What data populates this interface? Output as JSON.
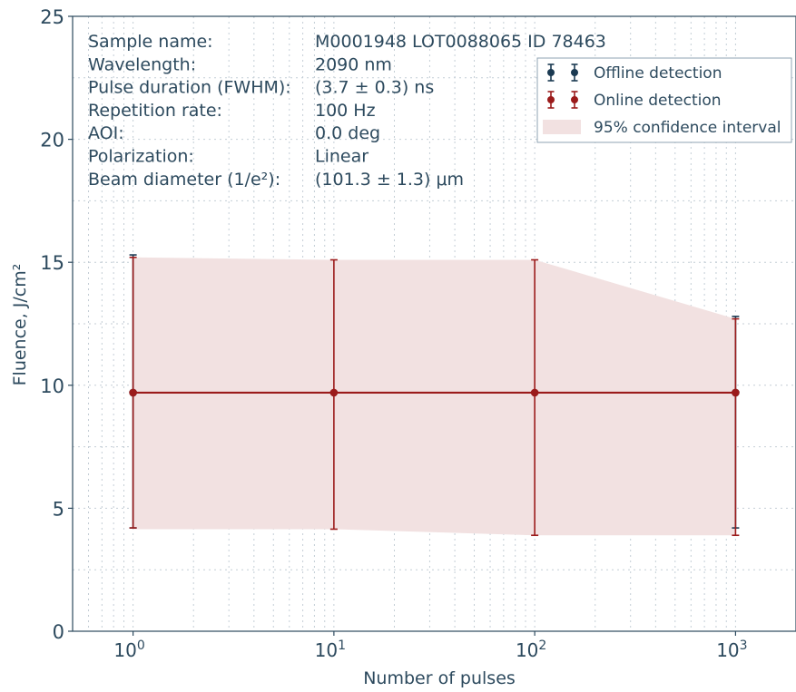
{
  "chart_data": {
    "type": "scatter",
    "x_scale": "log",
    "x_tick_values": [
      1,
      10,
      100,
      1000
    ],
    "x_tick_labels": [
      {
        "base": "10",
        "exp": "0"
      },
      {
        "base": "10",
        "exp": "1"
      },
      {
        "base": "10",
        "exp": "2"
      },
      {
        "base": "10",
        "exp": "3"
      }
    ],
    "xlim": [
      0.5,
      2000
    ],
    "xlabel": "Number of pulses",
    "ylabel": "Fluence, J/cm²",
    "ylim": [
      0,
      25
    ],
    "y_ticks": [
      0,
      5,
      10,
      15,
      20,
      25
    ],
    "grid": true,
    "legend_position": "top-right",
    "series": [
      {
        "name": "Offline detection",
        "color": "#1b3a52",
        "x": [
          1,
          1000
        ],
        "y": [
          9.7,
          9.7
        ],
        "y_low": [
          4.2,
          4.2
        ],
        "y_high": [
          15.3,
          12.8
        ]
      },
      {
        "name": "Online detection",
        "color": "#9b1b1b",
        "x": [
          1,
          10,
          100,
          1000
        ],
        "y": [
          9.7,
          9.7,
          9.7,
          9.7
        ],
        "y_low": [
          4.2,
          4.15,
          3.9,
          3.9
        ],
        "y_high": [
          15.2,
          15.1,
          15.1,
          12.7
        ]
      }
    ],
    "confidence_band": {
      "name": "95% confidence interval",
      "color": "#f2e1e1",
      "x": [
        1,
        10,
        100,
        1000
      ],
      "lower": [
        4.15,
        4.15,
        3.9,
        3.9
      ],
      "upper": [
        15.2,
        15.1,
        15.1,
        12.7
      ]
    }
  },
  "info_box": {
    "rows": [
      {
        "label": "Sample name:",
        "value": "M0001948 LOT0088065 ID 78463"
      },
      {
        "label": "Wavelength:",
        "value": "2090 nm"
      },
      {
        "label": "Pulse duration (FWHM):",
        "value": "(3.7 ± 0.3) ns"
      },
      {
        "label": "Repetition rate:",
        "value": "100 Hz"
      },
      {
        "label": "AOI:",
        "value": "0.0 deg"
      },
      {
        "label": "Polarization:",
        "value": "Linear"
      },
      {
        "label": "Beam diameter (1/e²):",
        "value": "(101.3 ± 1.3) μm"
      }
    ]
  }
}
